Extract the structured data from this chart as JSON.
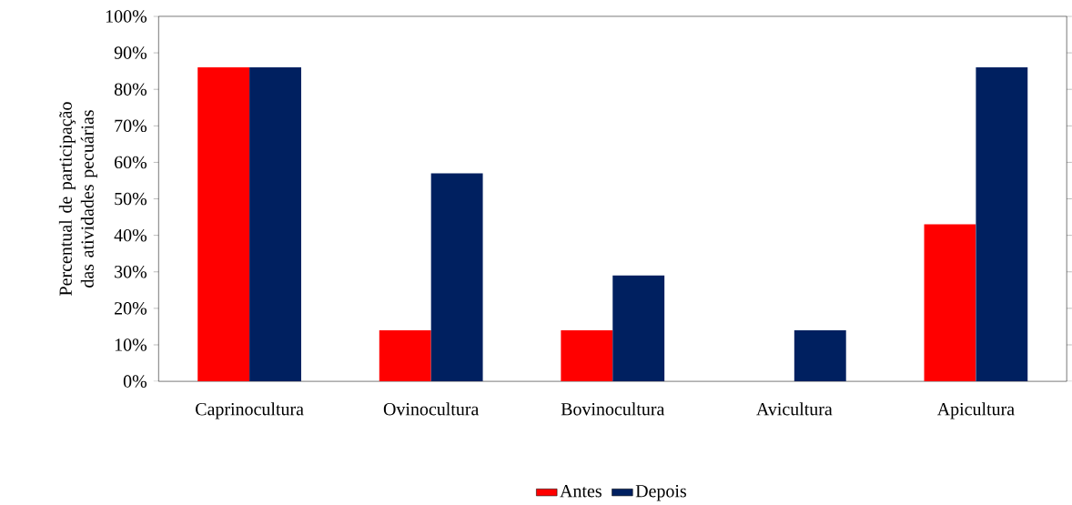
{
  "chart_data": {
    "type": "bar",
    "ylabel": "Percentual de participação das atividades pecuárias",
    "categories": [
      "Caprinocultura",
      "Ovinocultura",
      "Bovinocultura",
      "Avicultura",
      "Apicultura"
    ],
    "series": [
      {
        "name": "Antes",
        "color": "#ff0000",
        "values": [
          86,
          14,
          14,
          0,
          43
        ]
      },
      {
        "name": "Depois",
        "color": "#002060",
        "values": [
          86,
          57,
          29,
          14,
          86
        ]
      }
    ],
    "ylim": [
      0,
      100
    ],
    "yticks": [
      {
        "value": 0,
        "label": "0%"
      },
      {
        "value": 10,
        "label": "10%"
      },
      {
        "value": 20,
        "label": "20%"
      },
      {
        "value": 30,
        "label": "30%"
      },
      {
        "value": 40,
        "label": "40%"
      },
      {
        "value": 50,
        "label": "50%"
      },
      {
        "value": 60,
        "label": "60%"
      },
      {
        "value": 70,
        "label": "70%"
      },
      {
        "value": 80,
        "label": "80%"
      },
      {
        "value": 90,
        "label": "90%"
      },
      {
        "value": 100,
        "label": "100%"
      }
    ],
    "grid": false,
    "legend": "bottom"
  }
}
